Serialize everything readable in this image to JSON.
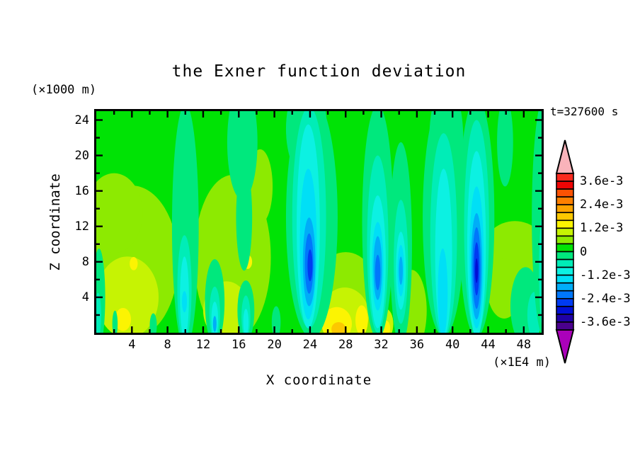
{
  "figure": {
    "title": "the Exner function deviation",
    "time_annotation": "t=327600 s",
    "x_axis_label": "X coordinate",
    "y_axis_label": "Z coordinate",
    "x_unit_label": "(×1E4 m)",
    "y_unit_label": "(×1000 m)"
  },
  "chart_data": {
    "type": "filled_contour",
    "title": "the Exner function deviation",
    "annotation": "t=327600 s",
    "xlabel": "X coordinate",
    "ylabel": "Z coordinate",
    "x_units": "(×1E4 m)",
    "y_units": "(×1000 m)",
    "x_range": [
      0,
      50
    ],
    "z_range": [
      0,
      25
    ],
    "x_major_ticks": [
      4,
      8,
      12,
      16,
      20,
      24,
      28,
      32,
      36,
      40,
      44,
      48
    ],
    "x_minor_ticks": [
      2,
      6,
      10,
      14,
      18,
      22,
      26,
      30,
      34,
      38,
      42,
      46
    ],
    "z_major_ticks": [
      4,
      8,
      12,
      16,
      20,
      24
    ],
    "z_minor_ticks": [
      2,
      6,
      10,
      14,
      18,
      22
    ],
    "grid": false,
    "contour_interval_e3": 0.4,
    "level_max_e3": 4.0,
    "level_min_e3": -4.0,
    "colors_top_to_bottom": [
      "#fa2a1e",
      "#ef0505",
      "#fc5203",
      "#fd7f00",
      "#fda300",
      "#fcc800",
      "#fcf402",
      "#c6f303",
      "#8dea01",
      "#00e305",
      "#00e87d",
      "#00edb7",
      "#0cf1e2",
      "#00dff6",
      "#00adf8",
      "#0077fc",
      "#003bf2",
      "#010fd5",
      "#1f01a6",
      "#4a018e"
    ],
    "over_color": "#f9b3ba",
    "under_color": "#ab01ba",
    "colorbar_labels": [
      "3.6e-3",
      "2.4e-3",
      "1.2e-3",
      "0",
      "-1.2e-3",
      "-2.4e-3",
      "-3.6e-3"
    ],
    "background_value_e3": 0.2,
    "features_note": "approximate contour regions; value_e3 = Exner deviation in units of 1e-3; x in 1E4 m, z in 1000 m; rx,rz = ellipse radii; painted in order",
    "features": [
      {
        "value_e3": 0.6,
        "x": 4.0,
        "z": 8.0,
        "rx": 5.2,
        "rz": 8.6
      },
      {
        "value_e3": 0.6,
        "x": 2.0,
        "z": 13.5,
        "rx": 3.2,
        "rz": 4.5
      },
      {
        "value_e3": 0.6,
        "x": 15.3,
        "z": 8.5,
        "rx": 4.3,
        "rz": 9.3
      },
      {
        "value_e3": 0.6,
        "x": 18.4,
        "z": 16.5,
        "rx": 1.4,
        "rz": 4.2
      },
      {
        "value_e3": 0.6,
        "x": 28.0,
        "z": 3.5,
        "rx": 3.9,
        "rz": 5.6
      },
      {
        "value_e3": 0.6,
        "x": 35.4,
        "z": 2.5,
        "rx": 1.7,
        "rz": 4.6
      },
      {
        "value_e3": 0.6,
        "x": 47.0,
        "z": 9.0,
        "rx": 3.7,
        "rz": 3.6
      },
      {
        "value_e3": 0.6,
        "x": 45.8,
        "z": 5.0,
        "rx": 1.9,
        "rz": 3.4
      },
      {
        "value_e3": 1.0,
        "x": 3.5,
        "z": 4.0,
        "rx": 3.5,
        "rz": 4.6
      },
      {
        "value_e3": 1.0,
        "x": 14.6,
        "z": 2.5,
        "rx": 2.6,
        "rz": 3.3
      },
      {
        "value_e3": 1.0,
        "x": 27.9,
        "z": 2.0,
        "rx": 2.7,
        "rz": 3.1
      },
      {
        "value_e3": 1.0,
        "x": 32.5,
        "z": 1.0,
        "rx": 0.85,
        "rz": 1.7
      },
      {
        "value_e3": 1.4,
        "x": 27.0,
        "z": 1.0,
        "rx": 1.7,
        "rz": 1.9
      },
      {
        "value_e3": 1.4,
        "x": 29.8,
        "z": 1.4,
        "rx": 0.7,
        "rz": 1.7
      },
      {
        "value_e3": 1.4,
        "x": 3.0,
        "z": 1.5,
        "rx": 0.9,
        "rz": 1.3
      },
      {
        "value_e3": 1.4,
        "x": 32.5,
        "z": 0.5,
        "rx": 0.5,
        "rz": 0.9
      },
      {
        "value_e3": 1.4,
        "x": 4.2,
        "z": 7.8,
        "rx": 0.45,
        "rz": 0.75
      },
      {
        "value_e3": 1.4,
        "x": 17.0,
        "z": 8.0,
        "rx": 0.5,
        "rz": 0.8
      },
      {
        "value_e3": 1.8,
        "x": 27.2,
        "z": 0.4,
        "rx": 0.8,
        "rz": 0.8
      },
      {
        "value_e3": -0.2,
        "x": 0.3,
        "z": 4.0,
        "rx": 0.7,
        "rz": 5.5
      },
      {
        "value_e3": -0.6,
        "x": 0.2,
        "z": 2.0,
        "rx": 0.35,
        "rz": 2.5
      },
      {
        "value_e3": -0.2,
        "x": 2.1,
        "z": 1.0,
        "rx": 0.3,
        "rz": 1.5
      },
      {
        "value_e3": -0.2,
        "x": 6.4,
        "z": 0.8,
        "rx": 0.4,
        "rz": 1.4
      },
      {
        "value_e3": -0.2,
        "x": 10.0,
        "z": 12.0,
        "rx": 1.5,
        "rz": 13.8
      },
      {
        "value_e3": -0.6,
        "x": 9.9,
        "z": 5.0,
        "rx": 0.8,
        "rz": 6.0
      },
      {
        "value_e3": -1.0,
        "x": 9.9,
        "z": 4.0,
        "rx": 0.5,
        "rz": 4.6
      },
      {
        "value_e3": -1.4,
        "x": 9.9,
        "z": 3.5,
        "rx": 0.28,
        "rz": 1.2
      },
      {
        "value_e3": -0.2,
        "x": 13.3,
        "z": 3.5,
        "rx": 1.1,
        "rz": 4.8
      },
      {
        "value_e3": -0.6,
        "x": 13.3,
        "z": 2.2,
        "rx": 0.6,
        "rz": 3.0
      },
      {
        "value_e3": -1.0,
        "x": 13.3,
        "z": 1.5,
        "rx": 0.38,
        "rz": 2.0
      },
      {
        "value_e3": -1.8,
        "x": 13.3,
        "z": 1.0,
        "rx": 0.2,
        "rz": 0.9
      },
      {
        "value_e3": -0.2,
        "x": 16.4,
        "z": 21.5,
        "rx": 1.7,
        "rz": 6.5
      },
      {
        "value_e3": -0.2,
        "x": 16.6,
        "z": 13.0,
        "rx": 0.9,
        "rz": 6.0
      },
      {
        "value_e3": -0.2,
        "x": 16.8,
        "z": 2.5,
        "rx": 0.95,
        "rz": 3.4
      },
      {
        "value_e3": -0.6,
        "x": 16.8,
        "z": 1.8,
        "rx": 0.5,
        "rz": 2.4
      },
      {
        "value_e3": -1.0,
        "x": 16.8,
        "z": 1.2,
        "rx": 0.3,
        "rz": 1.5
      },
      {
        "value_e3": -0.2,
        "x": 20.2,
        "z": 1.2,
        "rx": 0.5,
        "rz": 1.8
      },
      {
        "value_e3": -0.2,
        "x": 24.2,
        "z": 13.0,
        "rx": 2.9,
        "rz": 13.6
      },
      {
        "value_e3": -0.2,
        "x": 23.6,
        "z": 23.0,
        "rx": 2.3,
        "rz": 5.5
      },
      {
        "value_e3": -0.6,
        "x": 23.9,
        "z": 13.0,
        "rx": 1.9,
        "rz": 12.5
      },
      {
        "value_e3": -1.0,
        "x": 23.8,
        "z": 12.0,
        "rx": 1.3,
        "rz": 11.5
      },
      {
        "value_e3": -1.4,
        "x": 23.8,
        "z": 10.0,
        "rx": 0.95,
        "rz": 8.5
      },
      {
        "value_e3": -1.8,
        "x": 23.9,
        "z": 8.0,
        "rx": 0.7,
        "rz": 5.0
      },
      {
        "value_e3": -2.2,
        "x": 23.9,
        "z": 7.8,
        "rx": 0.48,
        "rz": 3.4
      },
      {
        "value_e3": -2.6,
        "x": 24.0,
        "z": 7.6,
        "rx": 0.28,
        "rz": 1.8
      },
      {
        "value_e3": -0.2,
        "x": 31.6,
        "z": 12.5,
        "rx": 1.75,
        "rz": 13.2
      },
      {
        "value_e3": -0.6,
        "x": 31.6,
        "z": 10.0,
        "rx": 1.2,
        "rz": 10.0
      },
      {
        "value_e3": -1.0,
        "x": 31.6,
        "z": 8.0,
        "rx": 0.9,
        "rz": 7.5
      },
      {
        "value_e3": -1.4,
        "x": 31.6,
        "z": 7.5,
        "rx": 0.65,
        "rz": 5.0
      },
      {
        "value_e3": -1.8,
        "x": 31.6,
        "z": 7.3,
        "rx": 0.48,
        "rz": 3.6
      },
      {
        "value_e3": -2.2,
        "x": 31.6,
        "z": 6.8,
        "rx": 0.3,
        "rz": 2.0
      },
      {
        "value_e3": -0.2,
        "x": 34.2,
        "z": 10.0,
        "rx": 1.25,
        "rz": 11.5
      },
      {
        "value_e3": -0.6,
        "x": 34.2,
        "z": 8.0,
        "rx": 0.8,
        "rz": 7.0
      },
      {
        "value_e3": -1.0,
        "x": 34.2,
        "z": 7.0,
        "rx": 0.55,
        "rz": 4.4
      },
      {
        "value_e3": -1.4,
        "x": 34.2,
        "z": 7.0,
        "rx": 0.38,
        "rz": 2.9
      },
      {
        "value_e3": -1.8,
        "x": 34.2,
        "z": 7.0,
        "rx": 0.22,
        "rz": 1.6
      },
      {
        "value_e3": -0.2,
        "x": 39.0,
        "z": 13.0,
        "rx": 2.35,
        "rz": 13.4
      },
      {
        "value_e3": -0.2,
        "x": 39.3,
        "z": 22.0,
        "rx": 1.9,
        "rz": 6.0
      },
      {
        "value_e3": -0.6,
        "x": 39.0,
        "z": 11.0,
        "rx": 1.5,
        "rz": 11.5
      },
      {
        "value_e3": -1.0,
        "x": 39.0,
        "z": 9.0,
        "rx": 0.95,
        "rz": 9.5
      },
      {
        "value_e3": -1.4,
        "x": 38.9,
        "z": 4.5,
        "rx": 0.55,
        "rz": 5.0
      },
      {
        "value_e3": -0.2,
        "x": 42.7,
        "z": 13.0,
        "rx": 2.0,
        "rz": 13.5
      },
      {
        "value_e3": -0.6,
        "x": 42.7,
        "z": 12.0,
        "rx": 1.4,
        "rz": 12.0
      },
      {
        "value_e3": -1.0,
        "x": 42.7,
        "z": 10.0,
        "rx": 1.05,
        "rz": 10.5
      },
      {
        "value_e3": -1.4,
        "x": 42.7,
        "z": 8.5,
        "rx": 0.8,
        "rz": 8.0
      },
      {
        "value_e3": -1.8,
        "x": 42.7,
        "z": 7.5,
        "rx": 0.62,
        "rz": 6.0
      },
      {
        "value_e3": -2.2,
        "x": 42.7,
        "z": 7.3,
        "rx": 0.46,
        "rz": 4.6
      },
      {
        "value_e3": -2.6,
        "x": 42.7,
        "z": 7.2,
        "rx": 0.3,
        "rz": 3.0
      },
      {
        "value_e3": -3.0,
        "x": 42.7,
        "z": 7.0,
        "rx": 0.16,
        "rz": 1.4
      },
      {
        "value_e3": -0.2,
        "x": 45.9,
        "z": 21.5,
        "rx": 0.9,
        "rz": 5.0
      },
      {
        "value_e3": -0.2,
        "x": 48.2,
        "z": 3.0,
        "rx": 1.7,
        "rz": 4.4
      },
      {
        "value_e3": -0.6,
        "x": 49.2,
        "z": 2.0,
        "rx": 0.8,
        "rz": 2.6
      },
      {
        "value_e3": -0.2,
        "x": 50.3,
        "z": 13.0,
        "rx": 1.4,
        "rz": 13.6
      },
      {
        "value_e3": -0.6,
        "x": 50.4,
        "z": 7.0,
        "rx": 0.7,
        "rz": 7.5
      }
    ]
  }
}
